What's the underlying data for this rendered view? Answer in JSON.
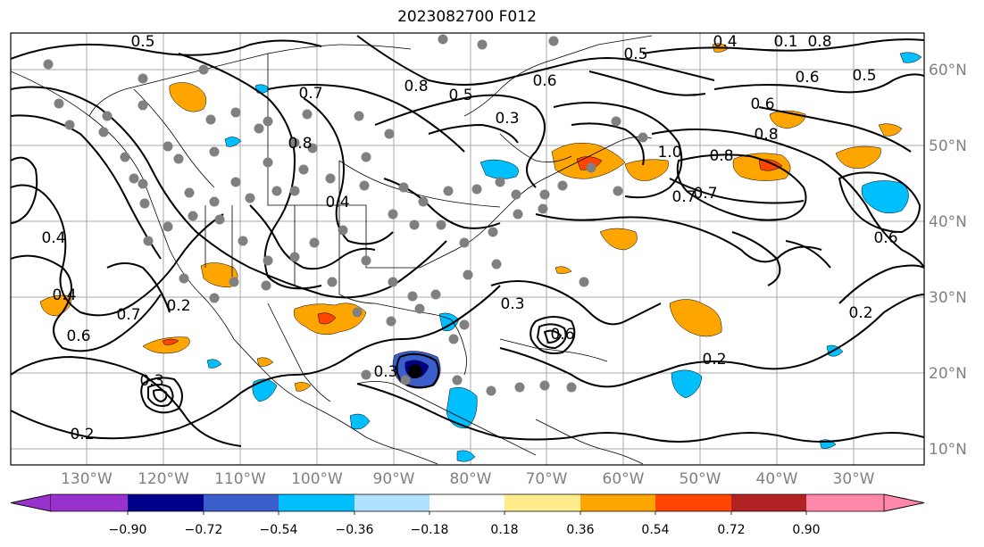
{
  "title": "2023082700 F012",
  "map": {
    "lat_labels": [
      "60°N",
      "50°N",
      "40°N",
      "30°N",
      "20°N",
      "10°N"
    ],
    "lon_labels": [
      "130°W",
      "120°W",
      "110°W",
      "100°W",
      "90°W",
      "80°W",
      "70°W",
      "60°W",
      "50°W",
      "40°W",
      "30°W"
    ],
    "contour_labels": [
      "0.5",
      "0.4",
      "0.1",
      "0.8",
      "0.7",
      "0.7",
      "0.8",
      "0.6",
      "0.5",
      "0.6",
      "0.5",
      "0.6",
      "0.8",
      "0.3",
      "0.5",
      "0.8",
      "1.0",
      "0.7",
      "0.8",
      "0.6",
      "0.4",
      "0.2",
      "0.4",
      "0.7",
      "0.6",
      "0.4",
      "0.3",
      "0.3",
      "0.2",
      "0.2",
      "0.2",
      "0.3",
      "0.6"
    ]
  },
  "colorbar": {
    "tick_labels": [
      "−0.90",
      "−0.72",
      "−0.54",
      "−0.36",
      "−0.18",
      "0.18",
      "0.36",
      "0.54",
      "0.72",
      "0.90"
    ],
    "colors": [
      "#9932cc",
      "#00008b",
      "#3a5fcd",
      "#00bfff",
      "#b0e2ff",
      "#ffffff",
      "#ffec8b",
      "#ffa500",
      "#ff4500",
      "#b22222",
      "#ff88aa"
    ]
  }
}
